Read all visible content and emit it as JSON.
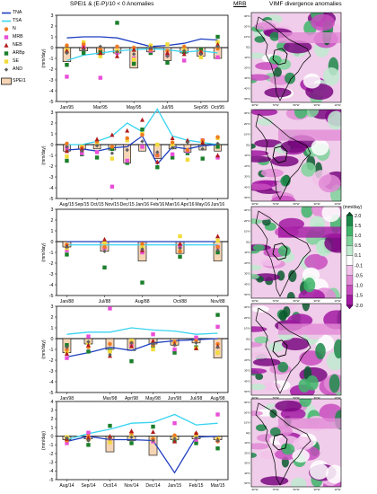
{
  "header": {
    "left_title": "SPEI1   &   (E-P)/10 < 0 Anomalies",
    "mrb": "MRB",
    "right_title": "VIMF divergence anomalies"
  },
  "legend": [
    {
      "label": "TNA",
      "kind": "line",
      "color": "#1f3fbf"
    },
    {
      "label": "TSA",
      "kind": "line",
      "color": "#38d4f0"
    },
    {
      "label": "N",
      "kind": "circle",
      "color": "#f07a20"
    },
    {
      "label": "MRB",
      "kind": "square",
      "color": "#e84fd8"
    },
    {
      "label": "NEB",
      "kind": "triangle",
      "color": "#b01c1c"
    },
    {
      "label": "ARBp",
      "kind": "square",
      "color": "#1a7f2a"
    },
    {
      "label": "SE",
      "kind": "square",
      "color": "#f2dc3a"
    },
    {
      "label": "AND",
      "kind": "diamond",
      "color": "#606060"
    },
    {
      "label": "SPEI1",
      "kind": "bar",
      "color": "#f5d5b5"
    }
  ],
  "colors": {
    "TNA": "#1f3fbf",
    "TSA": "#38d4f0",
    "N": "#f07a20",
    "MRB": "#e84fd8",
    "NEB": "#b01c1c",
    "ARBp": "#1a7f2a",
    "SE": "#f2dc3a",
    "AND": "#606060",
    "SPEI1": "#f5d5b5",
    "map_ocean": "#f0cdea"
  },
  "y_axis_label": "(mm/day)",
  "chart_data": [
    {
      "type": "bar",
      "categories": [
        "Jan/95",
        "Feb/95",
        "Mar/95",
        "Apr/95",
        "May/95",
        "Jun/95",
        "Jul/95",
        "Aug/95",
        "Sep/95",
        "Oct/95"
      ],
      "xtick_labels": [
        "Jan/95",
        "Mar/95",
        "May/95",
        "Jul/95",
        "Sep/95"
      ],
      "xtick_labels_right": [
        "Oct/95"
      ],
      "yticks": [
        "3",
        "2",
        "1",
        "0",
        "-1",
        "-2",
        "-3",
        "-4",
        "-5"
      ],
      "ylim": [
        -5,
        3
      ],
      "ylabel": "(mm/day)",
      "series": [
        {
          "name": "TNA",
          "type": "line",
          "values": [
            0.9,
            1.0,
            1.0,
            0.9,
            0.5,
            0.1,
            0.2,
            0.4,
            0.8,
            0.7
          ]
        },
        {
          "name": "TSA",
          "type": "line",
          "values": [
            -1.2,
            -0.7,
            -0.5,
            -0.3,
            -0.2,
            -0.1,
            -0.2,
            -0.4,
            -0.3,
            -0.5
          ]
        },
        {
          "name": "N",
          "type": "scatter",
          "values": [
            0.2,
            0.3,
            -0.1,
            0.1,
            0.0,
            -0.2,
            -0.3,
            0.1,
            -0.4,
            -0.1
          ]
        },
        {
          "name": "MRB",
          "type": "scatter",
          "values": [
            -2.7,
            0.1,
            -2.8,
            -0.5,
            -1.0,
            -0.3,
            -0.7,
            -1.2,
            -0.5,
            -0.9
          ]
        },
        {
          "name": "NEB",
          "type": "scatter",
          "values": [
            -0.3,
            0.0,
            -0.5,
            -0.8,
            -0.2,
            0.0,
            -0.5,
            -0.6,
            -0.4,
            0.3
          ]
        },
        {
          "name": "ARBp",
          "type": "scatter",
          "values": [
            -1.6,
            -0.5,
            -0.4,
            2.3,
            -1.5,
            -0.5,
            -1.4,
            -0.4,
            -0.2,
            1.0
          ]
        },
        {
          "name": "SE",
          "type": "scatter",
          "values": [
            -0.2,
            0.5,
            -0.8,
            -0.3,
            -1.1,
            0.2,
            0.3,
            -0.2,
            -0.9,
            0.5
          ]
        },
        {
          "name": "AND",
          "type": "scatter",
          "values": [
            -0.5,
            -0.2,
            0.1,
            -0.4,
            -0.6,
            0.0,
            -0.8,
            -0.3,
            -0.6,
            0.1
          ]
        },
        {
          "name": "SPEI1",
          "type": "bar",
          "values": [
            -1.3,
            -0.3,
            -0.6,
            -0.5,
            -1.9,
            -0.4,
            -1.2,
            -0.5,
            -0.8,
            -1.0
          ]
        }
      ]
    },
    {
      "type": "bar",
      "categories": [
        "Aug/15",
        "Sep/15",
        "Oct/15",
        "Nov/15",
        "Dec/15",
        "Jan/16",
        "Feb/16",
        "Mar/16",
        "Apr/16",
        "May/16",
        "Jun/16"
      ],
      "xtick_labels": [
        "Aug/15",
        "Sep/15",
        "Oct/15",
        "Nov/15",
        "Dec/15",
        "Jan/16",
        "Feb/16",
        "Mar/16",
        "Apr/16",
        "May/16",
        "Jun/16"
      ],
      "yticks": [
        "3",
        "2",
        "1",
        "0",
        "-1",
        "-2",
        "-3",
        "-4",
        "-5"
      ],
      "ylim": [
        -5,
        3
      ],
      "ylabel": "(mm/day)",
      "series": [
        {
          "name": "TNA",
          "type": "line",
          "values": [
            -0.5,
            -0.4,
            -0.6,
            -0.3,
            -0.2,
            0.8,
            -1.8,
            -0.2,
            -0.4,
            -0.1,
            0.0
          ]
        },
        {
          "name": "TSA",
          "type": "line",
          "values": [
            0.0,
            0.0,
            0.3,
            0.8,
            2.0,
            1.2,
            3.3,
            0.8,
            0.4,
            0.2,
            0.0
          ]
        },
        {
          "name": "N",
          "type": "scatter",
          "values": [
            0.1,
            -0.3,
            0.3,
            -0.2,
            0.6,
            0.9,
            -1.0,
            0.2,
            -0.5,
            0.4,
            0.7
          ]
        },
        {
          "name": "MRB",
          "type": "scatter",
          "values": [
            -0.3,
            -0.8,
            -0.7,
            -3.9,
            -1.5,
            -0.2,
            -1.0,
            -0.9,
            -0.6,
            0.4,
            -1.2
          ]
        },
        {
          "name": "NEB",
          "type": "scatter",
          "values": [
            -0.6,
            -0.4,
            0.5,
            0.9,
            1.3,
            2.3,
            -1.6,
            0.6,
            0.4,
            0.2,
            -1.0
          ]
        },
        {
          "name": "ARBp",
          "type": "scatter",
          "values": [
            -1.5,
            -0.9,
            -1.2,
            -0.4,
            -1.7,
            1.4,
            -2.1,
            -1.2,
            -0.8,
            -1.3,
            -0.2
          ]
        },
        {
          "name": "SE",
          "type": "scatter",
          "values": [
            -1.1,
            -0.2,
            0.2,
            -1.3,
            0.4,
            1.0,
            0.0,
            0.0,
            -1.4,
            0.3,
            0.6
          ]
        },
        {
          "name": "AND",
          "type": "scatter",
          "values": [
            -0.2,
            -0.6,
            -0.1,
            -0.8,
            -0.5,
            0.3,
            -0.7,
            -0.3,
            0.2,
            -0.4,
            0.1
          ]
        },
        {
          "name": "SPEI1",
          "type": "bar",
          "values": [
            -0.6,
            -0.4,
            -0.4,
            -0.5,
            -1.7,
            -0.6,
            -1.3,
            -0.4,
            -0.7,
            -0.5,
            -0.6
          ]
        }
      ]
    },
    {
      "type": "bar",
      "categories": [
        "Jan/88",
        "Jul/88",
        "Aug/88",
        "Oct/88",
        "Nov/88"
      ],
      "xtick_labels": [
        "Jan/88",
        "Jul/88",
        "Aug/88",
        "Oct/88",
        "Nov/88"
      ],
      "yticks": [
        "3",
        "2",
        "1",
        "0",
        "-1",
        "-2",
        "-3",
        "-4",
        "-5"
      ],
      "ylim": [
        -5,
        3
      ],
      "ylabel": "(mm/day)",
      "series": [
        {
          "name": "TNA",
          "type": "line",
          "values": [
            0.0,
            0.0,
            0.0,
            0.0,
            0.0
          ]
        },
        {
          "name": "TSA",
          "type": "line",
          "values": [
            -0.3,
            -0.3,
            -0.3,
            -0.3,
            -0.3
          ]
        },
        {
          "name": "N",
          "type": "scatter",
          "values": [
            -0.3,
            -0.5,
            -0.2,
            -0.9,
            -0.5
          ]
        },
        {
          "name": "MRB",
          "type": "scatter",
          "values": [
            -0.8,
            -0.6,
            -1.0,
            -0.4,
            -0.5
          ]
        },
        {
          "name": "NEB",
          "type": "scatter",
          "values": [
            -0.4,
            0.2,
            -0.8,
            -0.2,
            0.5
          ]
        },
        {
          "name": "ARBp",
          "type": "scatter",
          "values": [
            -1.2,
            -2.4,
            -3.8,
            -1.4,
            -1.0
          ]
        },
        {
          "name": "SE",
          "type": "scatter",
          "values": [
            -0.6,
            -0.1,
            -0.5,
            0.5,
            0.1
          ]
        },
        {
          "name": "AND",
          "type": "scatter",
          "values": [
            -0.5,
            -0.9,
            -0.7,
            -0.6,
            -0.8
          ]
        },
        {
          "name": "SPEI1",
          "type": "bar",
          "values": [
            -0.5,
            -0.9,
            -1.8,
            -1.1,
            -1.8
          ]
        }
      ]
    },
    {
      "type": "bar",
      "categories": [
        "Jan/98",
        "Feb/98",
        "Mar/98",
        "Apr/98",
        "May/98",
        "Jun/98",
        "Jul/98",
        "Aug/98"
      ],
      "xtick_labels": [
        "Jan/98",
        "Mar/98",
        "Apr/98",
        "May/98",
        "Jun/98",
        "Jul/98",
        "Aug/98"
      ],
      "xtick_positions": [
        0,
        2,
        3,
        4,
        5,
        6,
        7
      ],
      "yticks": [
        "3",
        "2",
        "1",
        "0",
        "-1",
        "-2",
        "-3",
        "-4",
        "-5"
      ],
      "ylim": [
        -5,
        3
      ],
      "ylabel": "(mm/day)",
      "series": [
        {
          "name": "TNA",
          "type": "line",
          "values": [
            -1.7,
            -1.3,
            -0.8,
            -1.1,
            -0.4,
            -0.2,
            -0.1,
            0.0
          ]
        },
        {
          "name": "TSA",
          "type": "line",
          "values": [
            0.4,
            0.6,
            0.6,
            1.0,
            0.8,
            0.7,
            0.4,
            0.5
          ]
        },
        {
          "name": "N",
          "type": "scatter",
          "values": [
            -1.0,
            -0.8,
            -0.5,
            -0.4,
            -0.6,
            -0.3,
            -0.2,
            -0.5
          ]
        },
        {
          "name": "MRB",
          "type": "scatter",
          "values": [
            -1.8,
            0.2,
            2.8,
            -0.6,
            0.4,
            -1.0,
            0.1,
            1.1
          ]
        },
        {
          "name": "NEB",
          "type": "scatter",
          "values": [
            -1.4,
            -0.6,
            -1.6,
            -0.7,
            -0.2,
            -0.5,
            -0.9,
            -0.7
          ]
        },
        {
          "name": "ARBp",
          "type": "scatter",
          "values": [
            -0.6,
            -1.2,
            -1.1,
            -2.1,
            -0.7,
            -1.3,
            -0.8,
            2.2
          ]
        },
        {
          "name": "SE",
          "type": "scatter",
          "values": [
            -1.2,
            -0.4,
            -1.2,
            -0.2,
            -1.0,
            -0.5,
            -0.9,
            -1.3
          ]
        },
        {
          "name": "AND",
          "type": "scatter",
          "values": [
            -0.8,
            -0.3,
            -1.5,
            -0.4,
            -0.5,
            -0.6,
            -0.4,
            -0.8
          ]
        },
        {
          "name": "SPEI1",
          "type": "bar",
          "values": [
            -1.3,
            -0.5,
            -1.0,
            -1.1,
            -0.5,
            -0.6,
            -0.4,
            -1.8
          ]
        }
      ]
    },
    {
      "type": "bar",
      "categories": [
        "Aug/14",
        "Sep/14",
        "Oct/14",
        "Nov/14",
        "Dec/14",
        "Jan/15",
        "Feb/15",
        "Mar/15"
      ],
      "xtick_labels": [
        "Aug/14",
        "Sep/14",
        "Oct/14",
        "Nov/14",
        "Dec/14",
        "Jan/15",
        "Feb/15",
        "Mar/15"
      ],
      "yticks": [
        "4",
        "3",
        "2",
        "1",
        "0",
        "-1",
        "-2",
        "-3",
        "-4",
        "-5"
      ],
      "ylim": [
        -5,
        4
      ],
      "ylabel": "(mm/day)",
      "series": [
        {
          "name": "TNA",
          "type": "line",
          "values": [
            -0.6,
            0.0,
            -0.4,
            -0.4,
            -0.5,
            -4.2,
            -0.1,
            0.0
          ]
        },
        {
          "name": "TSA",
          "type": "line",
          "values": [
            -0.4,
            0.3,
            0.8,
            1.5,
            1.6,
            2.5,
            1.3,
            1.5
          ]
        },
        {
          "name": "N",
          "type": "scatter",
          "values": [
            -0.5,
            0.0,
            -0.2,
            0.4,
            -0.3,
            0.1,
            0.3,
            -0.6
          ]
        },
        {
          "name": "MRB",
          "type": "scatter",
          "values": [
            -0.8,
            0.4,
            -0.5,
            0.3,
            -0.6,
            1.5,
            -0.4,
            2.5
          ]
        },
        {
          "name": "NEB",
          "type": "scatter",
          "values": [
            -0.3,
            -0.2,
            0.0,
            0.6,
            0.5,
            -0.6,
            0.4,
            -0.4
          ]
        },
        {
          "name": "ARBp",
          "type": "scatter",
          "values": [
            -0.3,
            -1.0,
            1.2,
            -0.8,
            1.1,
            -0.5,
            -0.8,
            -1.4
          ]
        },
        {
          "name": "SE",
          "type": "scatter",
          "values": [
            -0.1,
            -0.4,
            -0.7,
            0.0,
            -0.3,
            -0.2,
            0.1,
            -0.3
          ]
        },
        {
          "name": "AND",
          "type": "scatter",
          "values": [
            -0.2,
            -0.5,
            -0.3,
            -0.1,
            -0.5,
            -0.3,
            -0.2,
            -0.5
          ]
        },
        {
          "name": "SPEI1",
          "type": "bar",
          "values": [
            -0.4,
            -0.3,
            -1.8,
            -0.5,
            -2.2,
            -0.4,
            -0.3,
            -0.4
          ]
        }
      ]
    }
  ],
  "maps": {
    "lat_labels": [
      "30°N",
      "20°N",
      "10°N",
      "EQ",
      "10°S",
      "20°S",
      "30°S",
      "40°S",
      "50°S"
    ],
    "lon_labels": [
      "90°W",
      "70°W",
      "50°W",
      "30°W",
      "10°W"
    ]
  },
  "colorbar": {
    "unit": "(mm/day)",
    "labels": [
      "2.0",
      "1.5",
      "1.0",
      "0.5",
      "0.1",
      "-0.1",
      "-0.5",
      "-1.0",
      "-1.5",
      "-2.0"
    ],
    "colors": [
      "#0b5a2e",
      "#1d8a4a",
      "#3fb56a",
      "#7ed39a",
      "#bfead0",
      "#ffffff",
      "#f2c2ea",
      "#e28bd6",
      "#c94ec0",
      "#a21aa3",
      "#7a0880"
    ]
  }
}
